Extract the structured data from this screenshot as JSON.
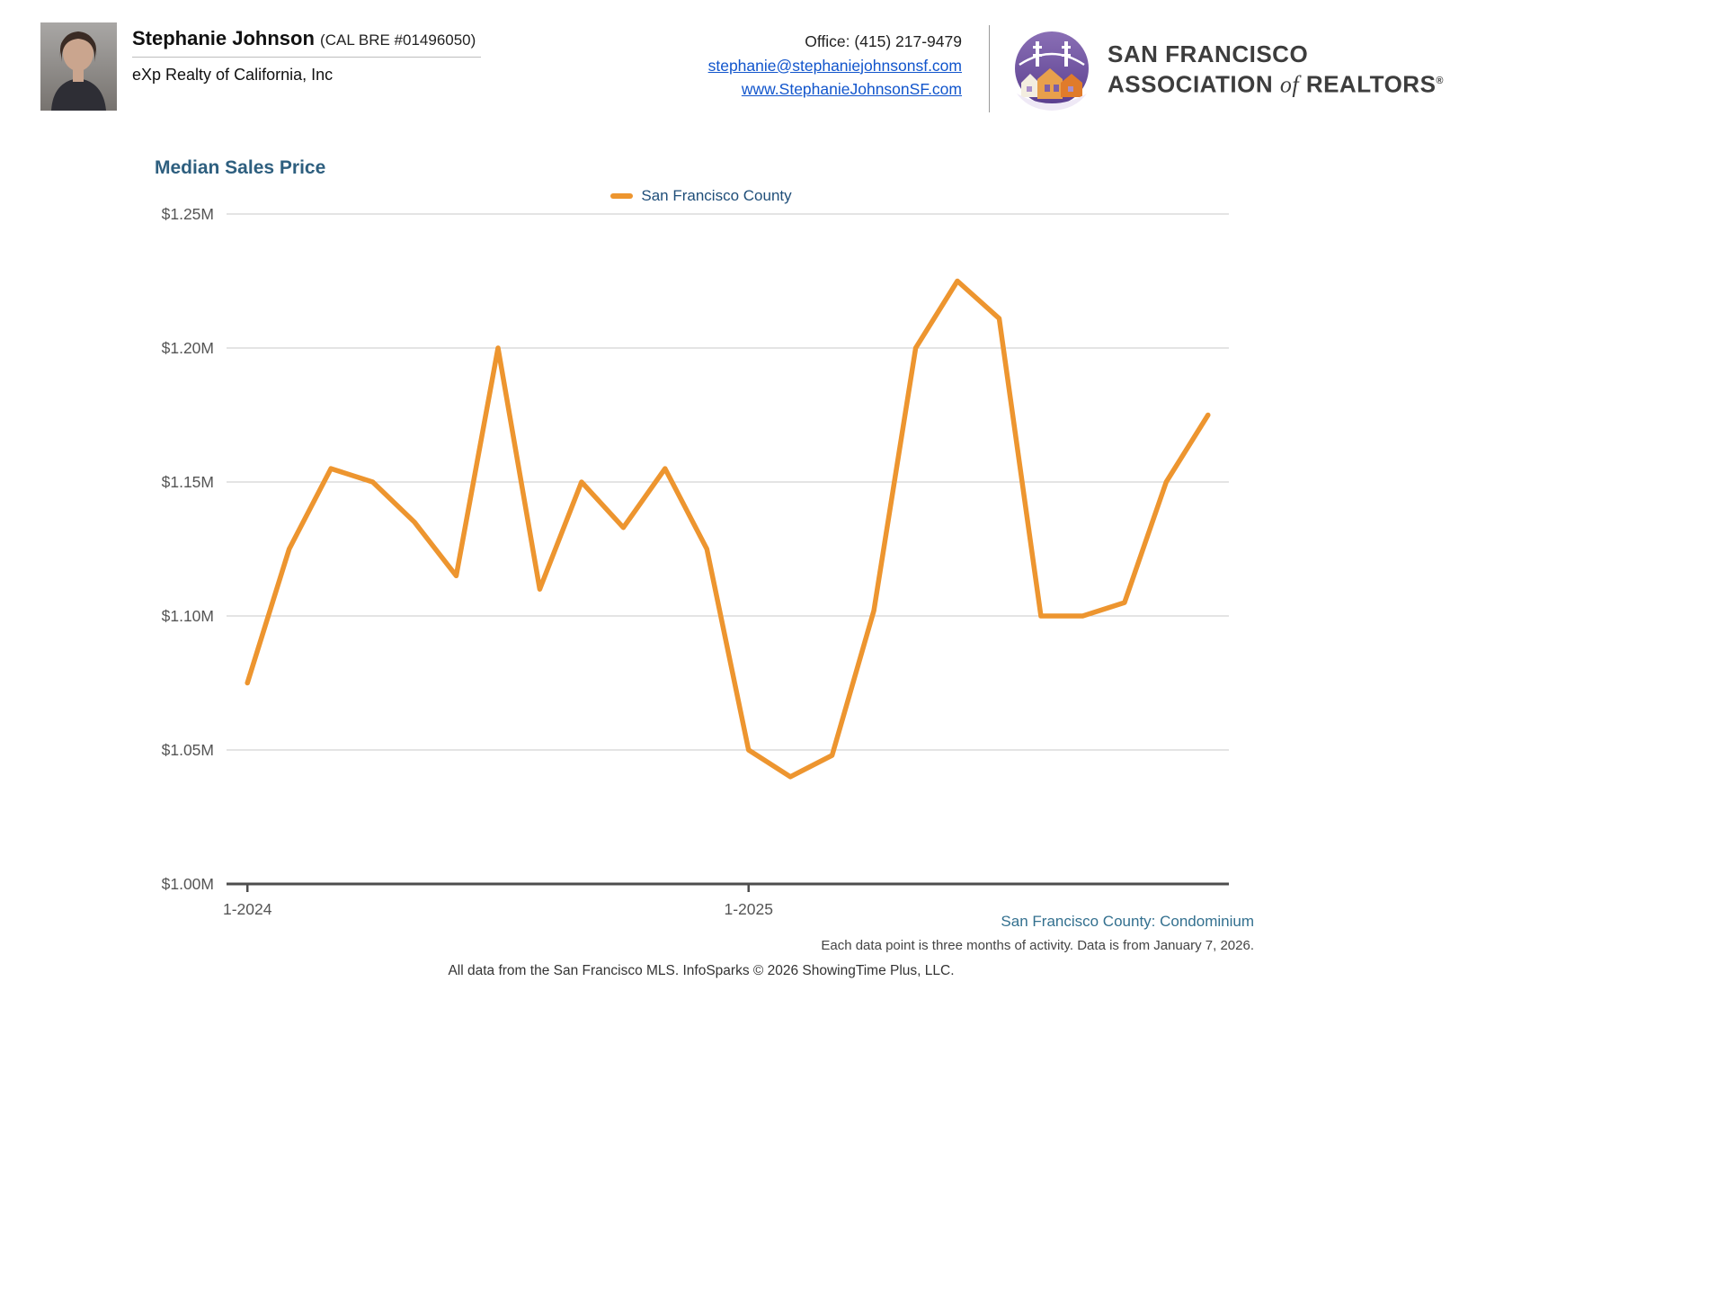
{
  "header": {
    "agent_name": "Stephanie Johnson",
    "agent_license": "(CAL BRE #01496050)",
    "agency": "eXp Realty of California, Inc",
    "office_phone": "Office: (415) 217-9479",
    "email": "stephanie@stephaniejohnsonsf.com",
    "website": "www.StephanieJohnsonSF.com",
    "logo": {
      "line1": "SAN FRANCISCO",
      "line2_a": "ASSOCIATION ",
      "line2_b": "of",
      "line2_c": " REALTORS",
      "registered": "®"
    }
  },
  "chart": {
    "title": "Median Sales Price"
  },
  "chart_data": {
    "type": "line",
    "title": "Median Sales Price",
    "legend_position": "top-center",
    "x": [
      "1-2024",
      "2-2024",
      "3-2024",
      "4-2024",
      "5-2024",
      "6-2024",
      "7-2024",
      "8-2024",
      "9-2024",
      "10-2024",
      "11-2024",
      "12-2024",
      "1-2025",
      "2-2025",
      "3-2025",
      "4-2025",
      "5-2025",
      "6-2025",
      "7-2025",
      "8-2025",
      "9-2025",
      "10-2025",
      "11-2025",
      "12-2025"
    ],
    "x_tick_indices": [
      0,
      12
    ],
    "series": [
      {
        "name": "San Francisco County",
        "color": "#ED952F",
        "values": [
          1.075,
          1.125,
          1.155,
          1.15,
          1.135,
          1.115,
          1.2,
          1.11,
          1.15,
          1.133,
          1.155,
          1.125,
          1.05,
          1.04,
          1.048,
          1.102,
          1.2,
          1.225,
          1.211,
          1.1,
          1.1,
          1.105,
          1.15,
          1.175
        ]
      }
    ],
    "ylim": [
      1.0,
      1.25
    ],
    "y_ticks": [
      1.0,
      1.05,
      1.1,
      1.15,
      1.2,
      1.25
    ],
    "y_tick_labels": [
      "$1.00M",
      "$1.05M",
      "$1.10M",
      "$1.15M",
      "$1.20M",
      "$1.25M"
    ],
    "ylabel": "",
    "xlabel": "",
    "grid": "horizontal"
  },
  "footer": {
    "segment": "San Francisco County: Condominium",
    "note": "Each data point is three months of activity. Data is from January 7, 2026.",
    "attribution": "All data from the San Francisco MLS. InfoSparks © 2026 ShowingTime Plus, LLC."
  }
}
